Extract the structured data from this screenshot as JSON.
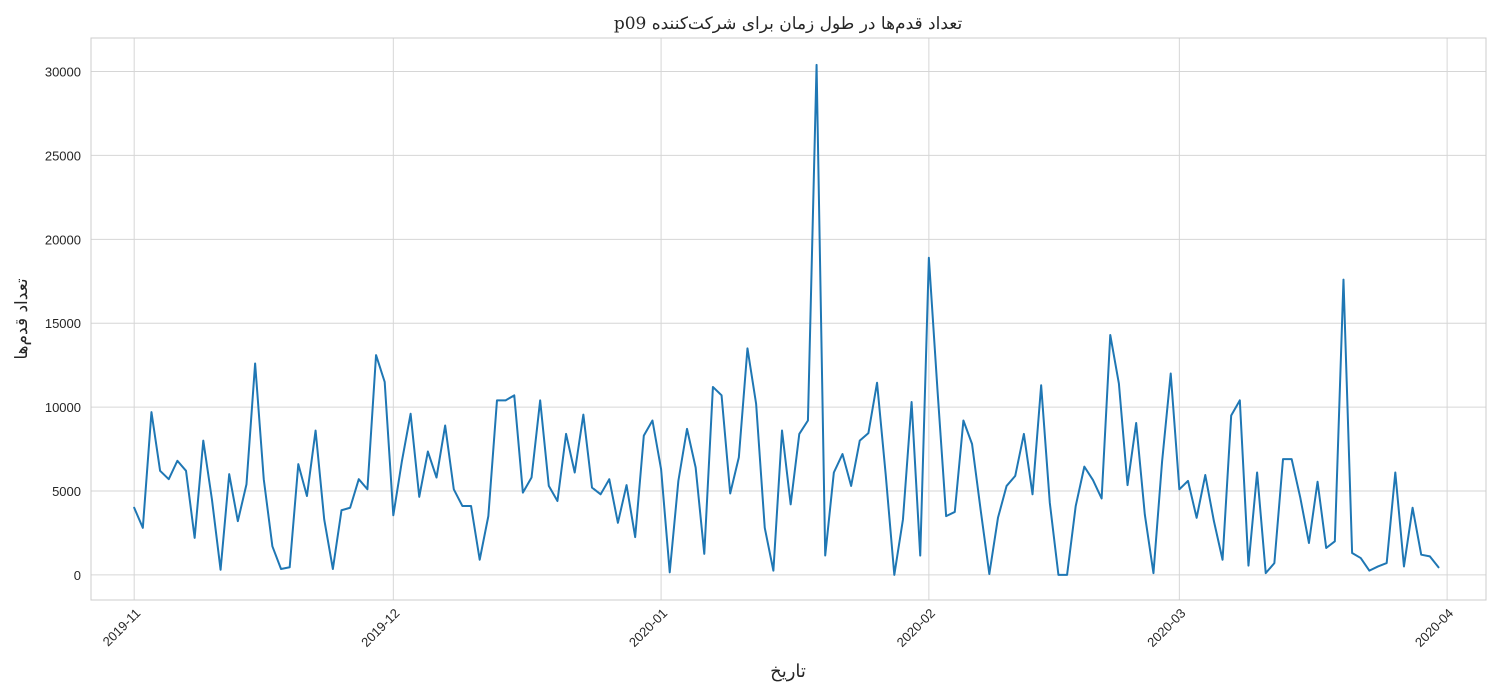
{
  "chart_data": {
    "type": "line",
    "title": "تعداد قدم‌ها در طول زمان برای شرکت‌کننده p09",
    "xlabel": "تاریخ",
    "ylabel": "تعداد قدم‌ها",
    "x_start": "2019-11-01",
    "x_end": "2020-03-31",
    "xlim_days": [
      -5.0,
      156.5
    ],
    "ylim": [
      -1500,
      32000
    ],
    "yticks": [
      0,
      5000,
      10000,
      15000,
      20000,
      25000,
      30000
    ],
    "xticks": [
      {
        "label": "2019-11",
        "day": 0
      },
      {
        "label": "2019-12",
        "day": 30
      },
      {
        "label": "2020-01",
        "day": 61
      },
      {
        "label": "2020-02",
        "day": 92
      },
      {
        "label": "2020-03",
        "day": 121
      },
      {
        "label": "2020-04",
        "day": 152
      }
    ],
    "line_color": "#1f77b4",
    "grid": true,
    "series": [
      {
        "name": "p09",
        "values": [
          4000,
          2800,
          9700,
          6200,
          5700,
          6800,
          6200,
          2200,
          8000,
          4500,
          300,
          6000,
          3200,
          5400,
          12600,
          5700,
          1700,
          350,
          450,
          6600,
          4700,
          8600,
          3300,
          350,
          3850,
          4000,
          5700,
          5100,
          13100,
          11500,
          3550,
          6800,
          9600,
          4650,
          7350,
          5800,
          8900,
          5100,
          4100,
          4100,
          900,
          3500,
          10400,
          10400,
          10700,
          4900,
          5800,
          10400,
          5300,
          4400,
          8400,
          6100,
          9550,
          5200,
          4800,
          5700,
          3100,
          5350,
          2250,
          8300,
          9200,
          6300,
          150,
          5600,
          8700,
          6400,
          1250,
          11200,
          10700,
          4850,
          7000,
          13500,
          10200,
          2800,
          250,
          8600,
          4200,
          8400,
          9200,
          30400,
          1150,
          6100,
          7200,
          5300,
          8000,
          8450,
          11450,
          6000,
          0,
          3300,
          10300,
          1150,
          18900,
          11000,
          3500,
          3750,
          9200,
          7800,
          3850,
          50,
          3400,
          5300,
          5900,
          8400,
          4800,
          11300,
          4300,
          0,
          0,
          4100,
          6450,
          5650,
          4550,
          14300,
          11400,
          5350,
          9050,
          3600,
          100,
          6750,
          12000,
          5100,
          5600,
          3400,
          5950,
          3200,
          900,
          9500,
          10400,
          550,
          6100,
          100,
          700,
          6900,
          6900,
          4600,
          1900,
          5550,
          1600,
          2000,
          17600,
          1300,
          1000,
          250,
          500,
          700,
          6100,
          500,
          4000,
          1200,
          1100,
          450
        ]
      }
    ]
  }
}
